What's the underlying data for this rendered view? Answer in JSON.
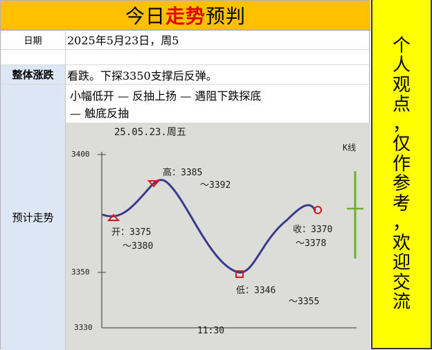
{
  "title": {
    "prefix": "今日",
    "highlight": "走势",
    "suffix": "预判"
  },
  "rows": {
    "date_label": "日期",
    "date_value": "2025年5月23日，周5",
    "overall_label": "整体涨跌",
    "overall_value": "看跌。下探3350支撑后反弹。",
    "trend_label": "预计走势",
    "trend_line1": "小幅低开 — 反抽上扬 — 遇阻下跌探底",
    "trend_line2": "— 触底反抽"
  },
  "side_note": [
    "个",
    "人",
    "观",
    "点",
    "，",
    "仅",
    "作",
    "参",
    "考",
    "，",
    "欢",
    "迎",
    "交",
    "流"
  ],
  "sketch": {
    "header": "25.05.23.周五",
    "y_top": "3400",
    "y_mid": "3350",
    "y_bottom": "3330",
    "x_mid": "11:30",
    "k_label": "K线",
    "open_label": "开：3375",
    "open_range": "～3380",
    "high_label": "高：3385",
    "high_range": "～3392",
    "low_label": "低：3346",
    "low_range": "～3355",
    "close_label": "收：3370",
    "close_range": "～3378"
  },
  "chart_data": {
    "type": "line",
    "title": "25.05.23.周五",
    "xlabel": "",
    "ylabel": "",
    "x_ticks": [
      "11:30"
    ],
    "y_ticks": [
      3400,
      3350,
      3330
    ],
    "ylim": [
      3330,
      3400
    ],
    "series": [
      {
        "points": [
          {
            "x": "open",
            "y": 3377
          },
          {
            "x": "high",
            "y": 3388
          },
          {
            "x": "low",
            "y": 3350
          },
          {
            "x": "close",
            "y": 3374
          }
        ]
      }
    ],
    "colors": {
      "line": "#3a3a8c",
      "markers": "#d01818",
      "kline": "#6fae2a"
    }
  }
}
